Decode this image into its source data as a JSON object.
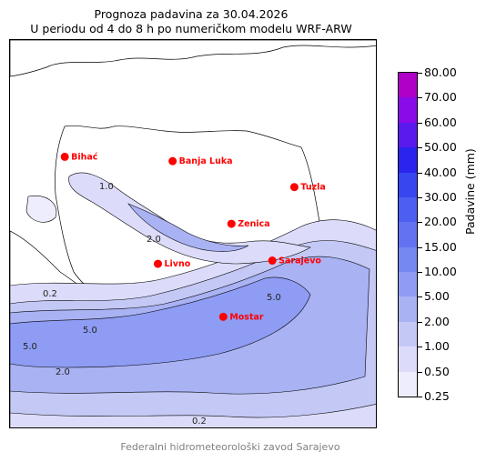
{
  "title_line1": "Prognoza padavina za 30.04.2026",
  "title_line2": "U periodu od 4 do 8 h po numeričkom modelu WRF-ARW",
  "footer": "Federalni hidrometeorološki zavod Sarajevo",
  "colorbar": {
    "label": "Padavine (mm)",
    "levels": [
      "0.25",
      "0.50",
      "1.00",
      "2.00",
      "5.00",
      "10.00",
      "15.00",
      "20.00",
      "30.00",
      "40.00",
      "50.00",
      "60.00",
      "70.00",
      "80.00"
    ],
    "colors": [
      "#ededfd",
      "#dcdcfa",
      "#c4c8f5",
      "#a9b2f3",
      "#8e9cf4",
      "#7588f2",
      "#6272f0",
      "#4d5ff0",
      "#3846f0",
      "#2a24ef",
      "#5a1aee",
      "#8a0ae8",
      "#b000c8"
    ]
  },
  "cities": [
    {
      "name": "Bihać",
      "lon": 15.87,
      "lat": 44.82
    },
    {
      "name": "Banja Luka",
      "lon": 17.19,
      "lat": 44.78
    },
    {
      "name": "Tuzla",
      "lon": 18.68,
      "lat": 44.54
    },
    {
      "name": "Zenica",
      "lon": 17.91,
      "lat": 44.2
    },
    {
      "name": "Livno",
      "lon": 17.01,
      "lat": 43.83
    },
    {
      "name": "Sarajevo",
      "lon": 18.41,
      "lat": 43.86
    },
    {
      "name": "Mostar",
      "lon": 17.81,
      "lat": 43.34
    }
  ],
  "contour_labels": [
    "0.2",
    "1.0",
    "2.0",
    "5.0"
  ],
  "colors": {
    "city_marker": "#ff0000",
    "city_label": "#ff0000",
    "footer": "#808080"
  }
}
